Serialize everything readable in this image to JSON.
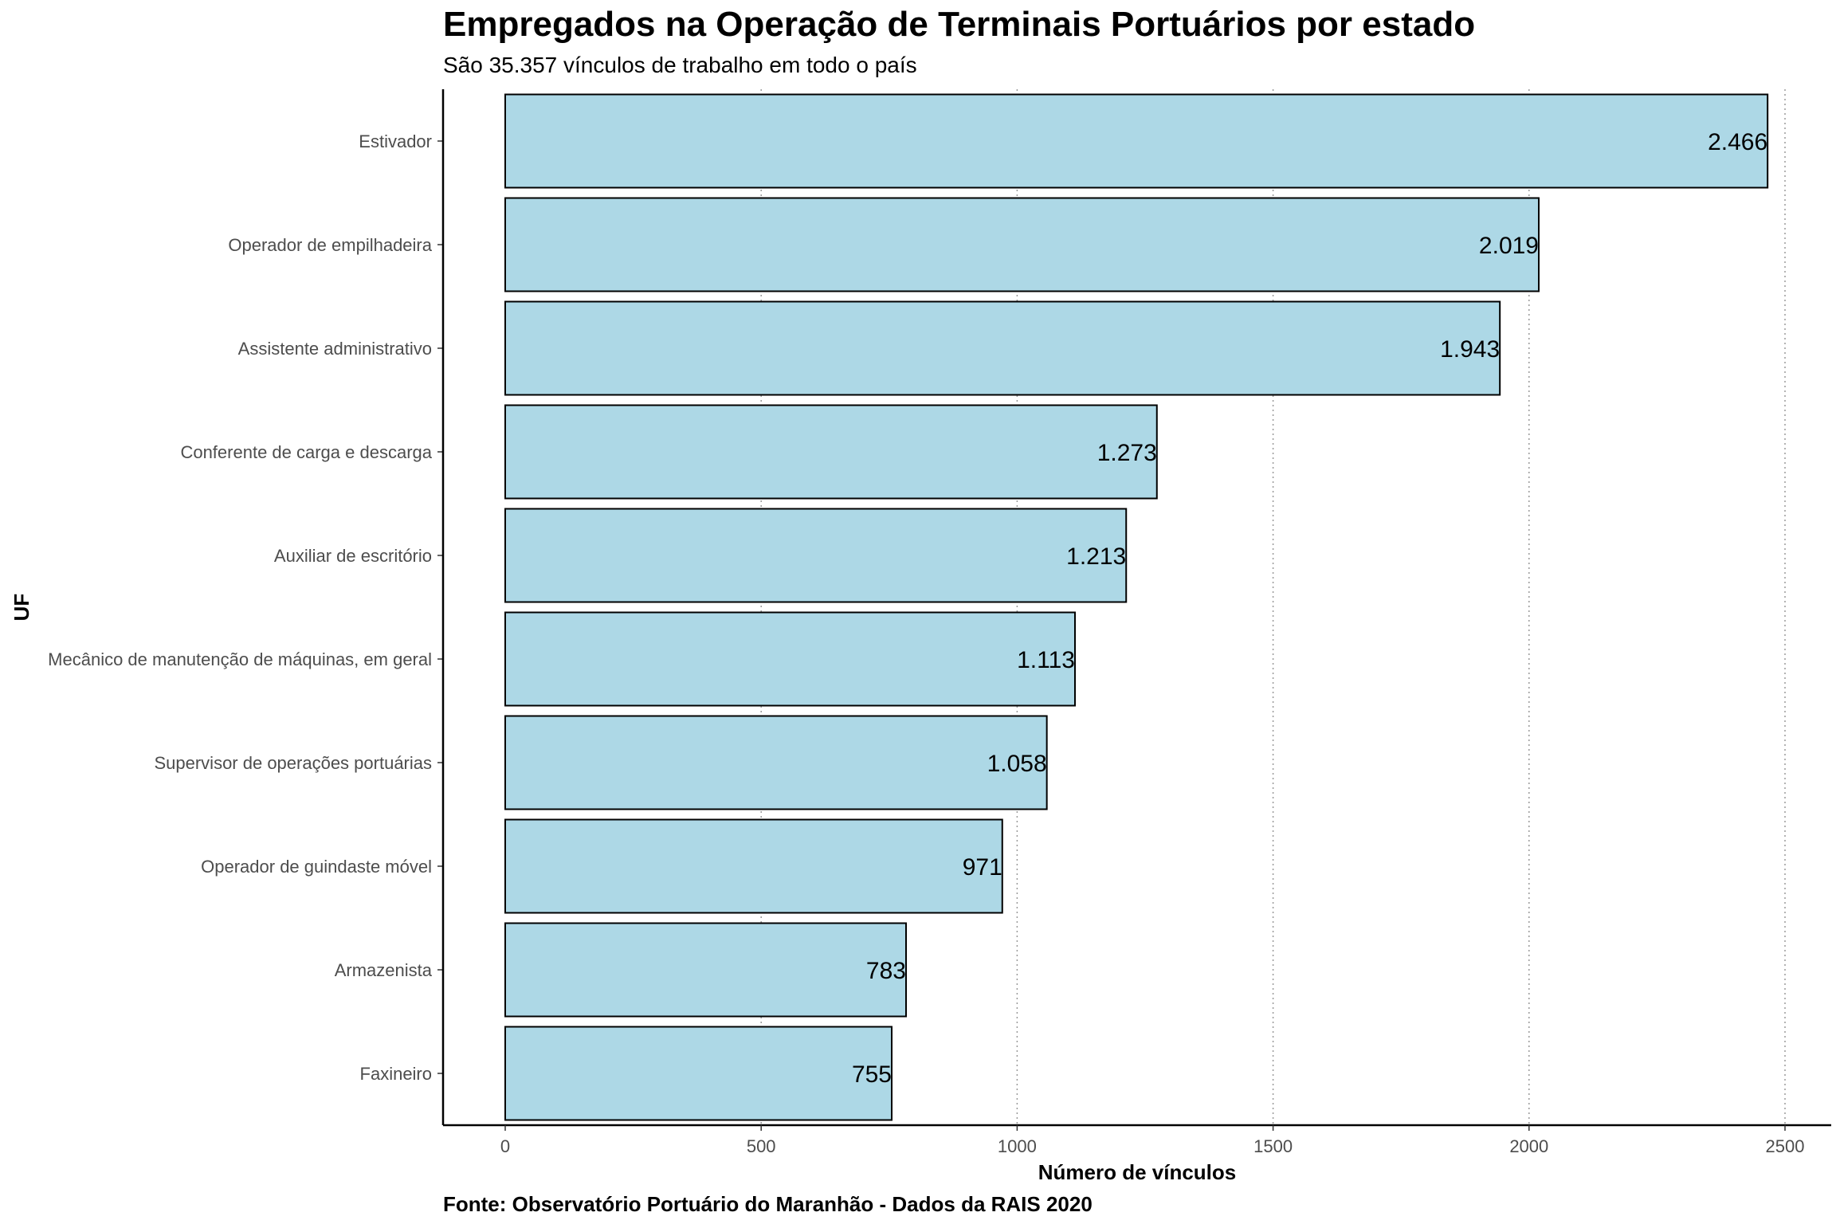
{
  "chart_data": {
    "type": "bar",
    "orientation": "horizontal",
    "title": "Empregados na Operação de Terminais Portuários por estado",
    "subtitle": "São 35.357 vínculos de trabalho em todo o país",
    "caption": "Fonte: Observatório Portuário do Maranhão - Dados da RAIS 2020",
    "xlabel": "Número de vínculos",
    "ylabel": "UF",
    "xlim": [
      -120,
      2600
    ],
    "xticks": [
      0,
      500,
      1000,
      1500,
      2000,
      2500
    ],
    "xtick_labels": [
      "0",
      "500",
      "1000",
      "1500",
      "2000",
      "2500"
    ],
    "grid": "vertical major dotted",
    "legend": "none",
    "bar_color": "#add8e6",
    "bar_border_color": "#000000",
    "categories": [
      "Estivador",
      "Operador de empilhadeira",
      "Assistente administrativo",
      "Conferente de carga e descarga",
      "Auxiliar de escritório",
      "Mecânico de manutenção de máquinas, em geral",
      "Supervisor de operações portuárias",
      "Operador de guindaste móvel",
      "Armazenista",
      "Faxineiro"
    ],
    "values": [
      2466,
      2019,
      1943,
      1273,
      1213,
      1113,
      1058,
      971,
      783,
      755
    ],
    "data_labels": [
      "2.466",
      "2.019",
      "1.943",
      "1.273",
      "1.213",
      "1.113",
      "1.058",
      "971",
      "783",
      "755"
    ]
  }
}
